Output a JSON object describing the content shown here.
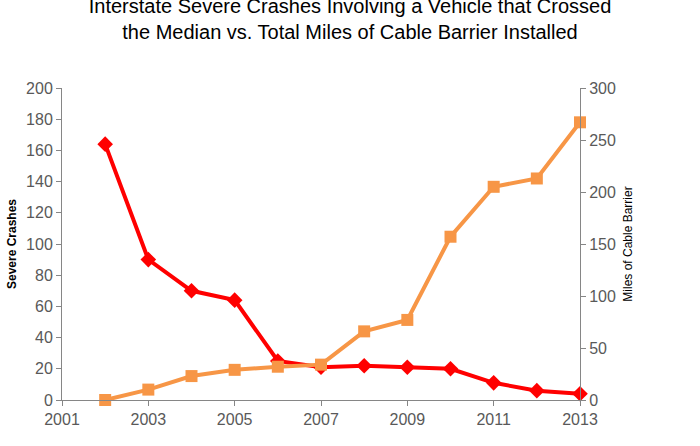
{
  "chart_data": {
    "type": "line",
    "title": "Interstate Severe Crashes Involving a Vehicle that Crossed\nthe Median vs. Total Miles of Cable Barrier Installed",
    "y_label": "Severe Crashes",
    "y2_label": "Miles of Cable Barrier",
    "x": [
      2002,
      2003,
      2004,
      2005,
      2006,
      2007,
      2008,
      2009,
      2010,
      2011,
      2012,
      2013
    ],
    "xlim": [
      2001,
      2013
    ],
    "xticks": [
      2001,
      2003,
      2005,
      2007,
      2009,
      2011,
      2013
    ],
    "ylim": [
      0,
      200
    ],
    "yticks": [
      0,
      20,
      40,
      60,
      80,
      100,
      120,
      140,
      160,
      180,
      200
    ],
    "y2lim": [
      0,
      300
    ],
    "y2ticks": [
      0,
      50,
      100,
      150,
      200,
      250,
      300
    ],
    "grid": false,
    "series": [
      {
        "color": "#ff0000",
        "marker": "diamond",
        "line_style": "solid",
        "axis": "y",
        "values": [
          164,
          90,
          70,
          64,
          25,
          21,
          22,
          21,
          20,
          11,
          6,
          4
        ]
      },
      {
        "color": "#f79646",
        "marker": "square",
        "line_style": "solid",
        "axis": "y2",
        "values": [
          0,
          10,
          23,
          29,
          32,
          34,
          66,
          77,
          157,
          205,
          213,
          267
        ]
      }
    ]
  }
}
